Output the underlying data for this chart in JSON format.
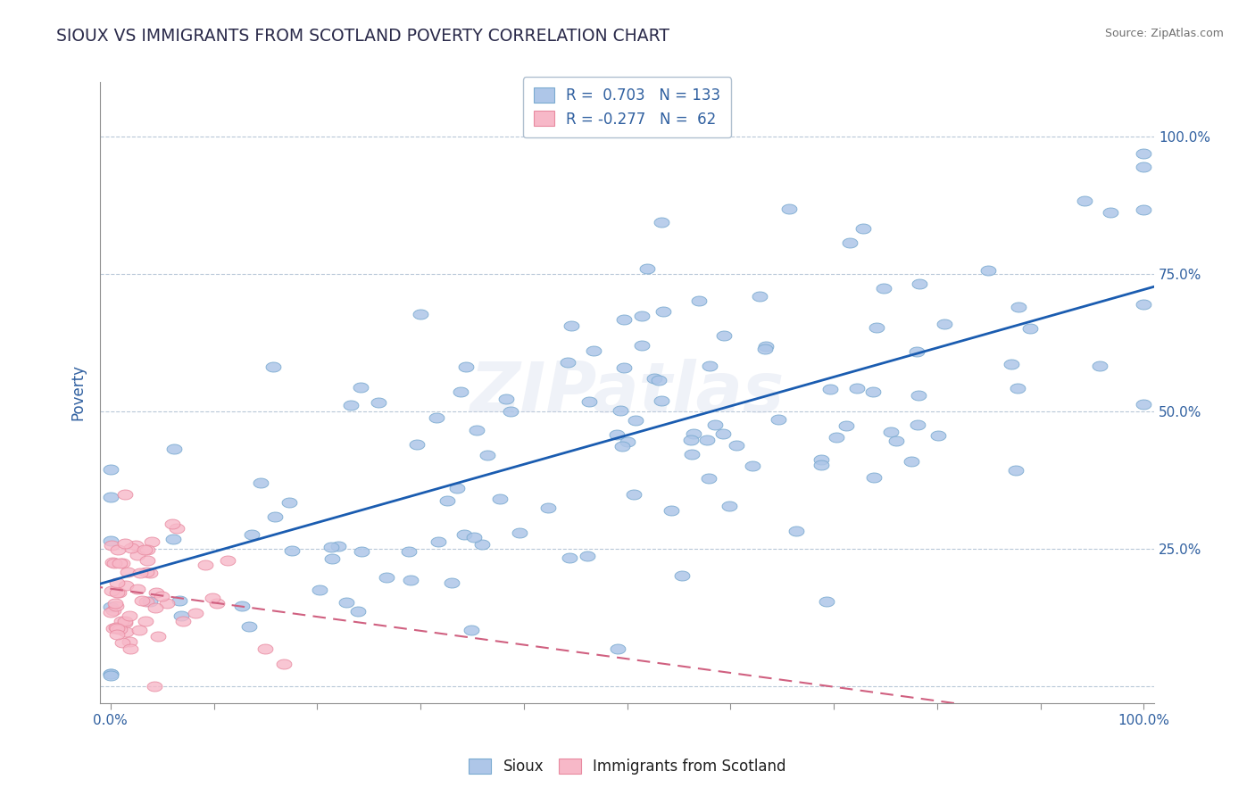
{
  "title": "SIOUX VS IMMIGRANTS FROM SCOTLAND POVERTY CORRELATION CHART",
  "source": "Source: ZipAtlas.com",
  "ylabel": "Poverty",
  "r_blue": 0.703,
  "n_blue": 133,
  "r_pink": -0.277,
  "n_pink": 62,
  "legend_labels": [
    "Sioux",
    "Immigrants from Scotland"
  ],
  "blue_color": "#aec6e8",
  "blue_edge": "#7aaad0",
  "pink_color": "#f7b8c8",
  "pink_edge": "#e88aa0",
  "trend_blue": "#1a5cb0",
  "trend_pink": "#d06080",
  "title_color": "#2a2a4a",
  "axis_label_color": "#3060a0",
  "tick_color": "#3060a0",
  "source_color": "#707070",
  "watermark": "ZIPatlas"
}
